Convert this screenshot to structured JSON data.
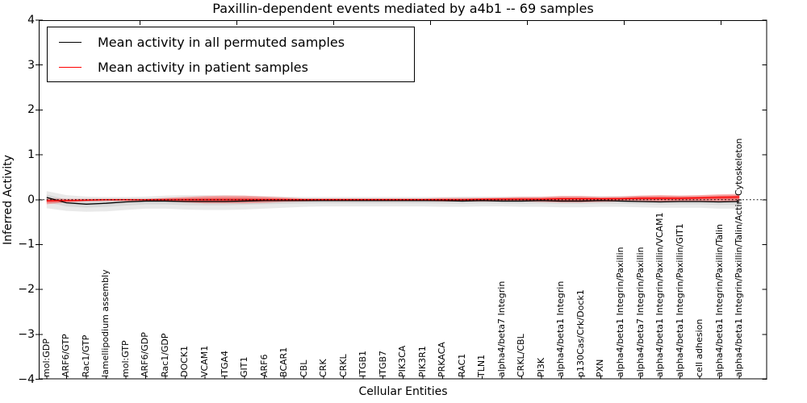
{
  "figure": {
    "title": "Paxillin-dependent events mediated by a4b1 -- 69 samples"
  },
  "axes": {
    "xlabel": "Cellular Entities",
    "ylabel": "Inferred Activity",
    "y_tick_labels": [
      "4",
      "3",
      "2",
      "1",
      "0",
      "−1",
      "−2",
      "−3",
      "−4"
    ]
  },
  "legend": {
    "entries": [
      {
        "label": "Mean activity in all permuted samples",
        "color": "#000000"
      },
      {
        "label": "Mean activity in patient samples",
        "color": "#ff0000"
      }
    ]
  },
  "colors": {
    "axis": "#000000",
    "background": "#ffffff",
    "permuted_line": "#000000",
    "patient_line": "#ff0000",
    "permuted_band": "#999999",
    "patient_band": "#ff0000"
  },
  "chart_data": {
    "type": "line",
    "title": "Paxillin-dependent events mediated by a4b1 -- 69 samples",
    "xlabel": "Cellular Entities",
    "ylabel": "Inferred Activity",
    "ylim": [
      -4,
      4
    ],
    "yticks": [
      4,
      3,
      2,
      1,
      0,
      -1,
      -2,
      -3,
      -4
    ],
    "grid": false,
    "legend_position": "upper left",
    "zero_line": {
      "style": "dotted",
      "y": 0
    },
    "categories": [
      "mol:GDP",
      "ARF6/GTP",
      "Rac1/GTP",
      "lamellipodium assembly",
      "mol:GTP",
      "ARF6/GDP",
      "Rac1/GDP",
      "DOCK1",
      "VCAM1",
      "ITGA4",
      "GIT1",
      "ARF6",
      "BCAR1",
      "CBL",
      "CRK",
      "CRKL",
      "ITGB1",
      "ITGB7",
      "PIK3CA",
      "PIK3R1",
      "PRKACA",
      "RAC1",
      "TLN1",
      "alpha4/beta7 Integrin",
      "CRKL/CBL",
      "PI3K",
      "alpha4/beta1 Integrin",
      "p130Cas/Crk/Dock1",
      "PXN",
      "alpha4/beta1 Integrin/Paxillin",
      "alpha4/beta7 Integrin/Paxillin",
      "alpha4/beta1 Integrin/Paxillin/VCAM1",
      "alpha4/beta1 Integrin/Paxillin/GIT1",
      "cell adhesion",
      "alpha4/beta1 Integrin/Paxillin/Talin",
      "alpha4/beta1 Integrin/Paxillin/Talin/Actin Cytoskeleton"
    ],
    "series": [
      {
        "name": "Mean activity in all permuted samples",
        "color": "#000000",
        "values": [
          0.05,
          -0.07,
          -0.1,
          -0.08,
          -0.05,
          -0.03,
          -0.03,
          -0.04,
          -0.04,
          -0.04,
          -0.03,
          -0.02,
          -0.02,
          -0.02,
          -0.02,
          -0.02,
          -0.02,
          -0.02,
          -0.02,
          -0.02,
          -0.02,
          -0.03,
          -0.02,
          -0.03,
          -0.03,
          -0.02,
          -0.03,
          -0.03,
          -0.02,
          -0.03,
          -0.04,
          -0.05,
          -0.04,
          -0.04,
          -0.05,
          -0.04
        ],
        "band_upper": [
          0.19,
          0.1,
          0.07,
          0.06,
          0.06,
          0.07,
          0.09,
          0.1,
          0.1,
          0.1,
          0.09,
          0.08,
          0.07,
          0.06,
          0.06,
          0.06,
          0.06,
          0.06,
          0.06,
          0.06,
          0.06,
          0.07,
          0.07,
          0.07,
          0.07,
          0.07,
          0.08,
          0.08,
          0.08,
          0.08,
          0.09,
          0.09,
          0.09,
          0.09,
          0.1,
          0.1
        ],
        "band_lower": [
          -0.19,
          -0.25,
          -0.27,
          -0.26,
          -0.23,
          -0.2,
          -0.2,
          -0.22,
          -0.23,
          -0.23,
          -0.22,
          -0.2,
          -0.18,
          -0.16,
          -0.15,
          -0.15,
          -0.15,
          -0.15,
          -0.15,
          -0.15,
          -0.16,
          -0.16,
          -0.15,
          -0.15,
          -0.16,
          -0.16,
          -0.17,
          -0.17,
          -0.16,
          -0.16,
          -0.17,
          -0.18,
          -0.18,
          -0.18,
          -0.2,
          -0.2
        ]
      },
      {
        "name": "Mean activity in patient samples",
        "color": "#ff0000",
        "values": [
          -0.02,
          -0.02,
          -0.01,
          0.0,
          0.0,
          0.0,
          0.0,
          0.0,
          0.0,
          0.0,
          0.0,
          0.0,
          0.0,
          0.0,
          0.0,
          0.0,
          0.0,
          0.0,
          0.0,
          0.0,
          0.0,
          0.0,
          0.01,
          0.01,
          0.01,
          0.01,
          0.02,
          0.02,
          0.02,
          0.02,
          0.03,
          0.03,
          0.03,
          0.04,
          0.05,
          0.06
        ],
        "band_upper": [
          0.03,
          0.02,
          0.02,
          0.02,
          0.02,
          0.02,
          0.04,
          0.06,
          0.08,
          0.09,
          0.09,
          0.07,
          0.05,
          0.03,
          0.03,
          0.03,
          0.03,
          0.03,
          0.03,
          0.03,
          0.04,
          0.04,
          0.04,
          0.05,
          0.06,
          0.06,
          0.08,
          0.08,
          0.06,
          0.07,
          0.09,
          0.1,
          0.09,
          0.1,
          0.12,
          0.13
        ],
        "band_lower": [
          -0.1,
          -0.06,
          -0.04,
          -0.03,
          -0.03,
          -0.03,
          -0.04,
          -0.06,
          -0.08,
          -0.08,
          -0.08,
          -0.07,
          -0.05,
          -0.04,
          -0.03,
          -0.03,
          -0.03,
          -0.03,
          -0.03,
          -0.03,
          -0.04,
          -0.04,
          -0.04,
          -0.04,
          -0.04,
          -0.05,
          -0.06,
          -0.06,
          -0.05,
          -0.04,
          -0.04,
          -0.05,
          -0.05,
          -0.04,
          -0.04,
          -0.04
        ]
      }
    ]
  }
}
